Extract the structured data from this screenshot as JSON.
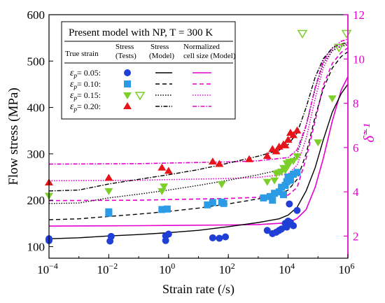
{
  "chart_data": {
    "type": "scatter",
    "title": "Present model with NP, T = 300 K",
    "xlabel": "Strain rate (/s)",
    "ylabel": "Flow stress (MPa)",
    "y2label": "δ̃⁻¹",
    "x_scale": "log",
    "xlim": [
      0.0001,
      1000000
    ],
    "ylim": [
      75,
      600
    ],
    "y2lim": [
      1,
      12
    ],
    "x_ticks": [
      {
        "value": 0.0001,
        "base": "10",
        "exp": "−4"
      },
      {
        "value": 0.01,
        "base": "10",
        "exp": "−2"
      },
      {
        "value": 1,
        "base": "10",
        "exp": "0"
      },
      {
        "value": 100,
        "base": "10",
        "exp": "2"
      },
      {
        "value": 10000,
        "base": "10",
        "exp": "4"
      },
      {
        "value": 1000000,
        "base": "10",
        "exp": "6"
      }
    ],
    "y_ticks": [
      100,
      200,
      300,
      400,
      500,
      600
    ],
    "y2_ticks": [
      2,
      4,
      6,
      8,
      10,
      12
    ],
    "colors": {
      "axis_right": "#e600d0",
      "model_size": "#e600d0",
      "s005": "#1f3fd6",
      "s010": "#2b9be6",
      "s015": "#7ccf2a",
      "s020": "#e8141b"
    },
    "legend": {
      "header": {
        "col1": "True strain",
        "col2": [
          "Stress",
          "(Tests)"
        ],
        "col3": [
          "Stress",
          "(Model)"
        ],
        "col4": [
          "Normalized",
          "cell size (Model)"
        ]
      },
      "rows": [
        {
          "label": "= 0.05:",
          "marker": "circle",
          "color": "#1f3fd6",
          "dash": ""
        },
        {
          "label": "= 0.10:",
          "marker": "square",
          "color": "#2b9be6",
          "dash": "6,4"
        },
        {
          "label": "= 0.15:",
          "marker": "triangle-down",
          "color": "#7ccf2a",
          "dash": "1.5,2"
        },
        {
          "label": "= 0.20:",
          "marker": "triangle-up",
          "color": "#e8141b",
          "dash": "6,2,1.5,2"
        }
      ]
    },
    "series": [
      {
        "name": "ε_p = 0.05",
        "marker": "circle",
        "color": "#1f3fd6",
        "dash": "",
        "tests": [
          [
            0.0001,
            113
          ],
          [
            0.0001,
            117
          ],
          [
            0.011,
            112
          ],
          [
            0.012,
            122
          ],
          [
            0.8,
            123
          ],
          [
            0.8,
            113
          ],
          [
            1.0,
            127
          ],
          [
            30,
            119
          ],
          [
            50,
            118
          ],
          [
            80,
            121
          ],
          [
            2000,
            135
          ],
          [
            3000,
            128
          ],
          [
            4000,
            131
          ],
          [
            5000,
            135
          ],
          [
            6000,
            138
          ],
          [
            8000,
            150
          ],
          [
            9000,
            142
          ],
          [
            10000,
            155
          ],
          [
            12000,
            152
          ],
          [
            15000,
            145
          ],
          [
            11000,
            192
          ],
          [
            20000,
            178
          ]
        ],
        "stress_model": [
          [
            0.0001,
            117
          ],
          [
            0.001,
            119
          ],
          [
            0.01,
            123
          ],
          [
            0.1,
            126
          ],
          [
            1,
            130
          ],
          [
            10,
            135
          ],
          [
            100,
            143
          ],
          [
            1000,
            152
          ],
          [
            5000,
            160
          ],
          [
            10000,
            168
          ],
          [
            20000,
            185
          ],
          [
            40000,
            220
          ],
          [
            80000,
            270
          ],
          [
            150000,
            330
          ],
          [
            300000,
            390
          ],
          [
            600000,
            430
          ],
          [
            1000000,
            450
          ]
        ],
        "cell_size_model": [
          [
            0.0001,
            2.45
          ],
          [
            0.1,
            2.47
          ],
          [
            1,
            2.48
          ],
          [
            100,
            2.5
          ],
          [
            1000,
            2.52
          ],
          [
            10000,
            2.6
          ],
          [
            20000,
            2.8
          ],
          [
            40000,
            3.2
          ],
          [
            80000,
            4.2
          ],
          [
            150000,
            5.5
          ],
          [
            300000,
            7.2
          ],
          [
            600000,
            8.6
          ],
          [
            1000000,
            9.2
          ]
        ]
      },
      {
        "name": "ε_p = 0.10",
        "marker": "square",
        "color": "#2b9be6",
        "dash": "6,4",
        "tests": [
          [
            0.01,
            175
          ],
          [
            0.01,
            172
          ],
          [
            0.6,
            180
          ],
          [
            0.9,
            181
          ],
          [
            20,
            190
          ],
          [
            30,
            195
          ],
          [
            60,
            196
          ],
          [
            70,
            193
          ],
          [
            1500,
            205
          ],
          [
            2500,
            208
          ],
          [
            3000,
            200
          ],
          [
            3500,
            215
          ],
          [
            5000,
            218
          ],
          [
            6000,
            228
          ],
          [
            7000,
            212
          ],
          [
            8000,
            232
          ],
          [
            9000,
            240
          ],
          [
            10000,
            250
          ],
          [
            12000,
            243
          ],
          [
            15000,
            256
          ],
          [
            20000,
            260
          ]
        ],
        "stress_model": [
          [
            0.0001,
            158
          ],
          [
            0.001,
            160
          ],
          [
            0.01,
            165
          ],
          [
            0.1,
            170
          ],
          [
            1,
            176
          ],
          [
            10,
            183
          ],
          [
            100,
            192
          ],
          [
            1000,
            203
          ],
          [
            5000,
            213
          ],
          [
            10000,
            222
          ],
          [
            20000,
            245
          ],
          [
            40000,
            300
          ],
          [
            80000,
            380
          ],
          [
            150000,
            440
          ],
          [
            300000,
            485
          ],
          [
            600000,
            510
          ],
          [
            1000000,
            520
          ]
        ],
        "cell_size_model": [
          [
            0.0001,
            3.6
          ],
          [
            0.1,
            3.62
          ],
          [
            1,
            3.65
          ],
          [
            100,
            3.7
          ],
          [
            1000,
            3.75
          ],
          [
            10000,
            3.85
          ],
          [
            20000,
            4.2
          ],
          [
            40000,
            5.5
          ],
          [
            80000,
            7.2
          ],
          [
            150000,
            8.8
          ],
          [
            300000,
            9.8
          ],
          [
            600000,
            10.3
          ],
          [
            1000000,
            10.5
          ]
        ]
      },
      {
        "name": "ε_p = 0.15",
        "marker": "triangle-down",
        "color": "#7ccf2a",
        "dash": "1.5,2",
        "tests": [
          [
            0.0001,
            210
          ],
          [
            0.01,
            220
          ],
          [
            0.6,
            220
          ],
          [
            0.7,
            230
          ],
          [
            60,
            235
          ],
          [
            2000,
            240
          ],
          [
            3500,
            243
          ],
          [
            4000,
            258
          ],
          [
            5000,
            260
          ],
          [
            6000,
            262
          ],
          [
            7000,
            270
          ],
          [
            8000,
            265
          ],
          [
            9000,
            280
          ],
          [
            10000,
            275
          ],
          [
            11000,
            283
          ],
          [
            15000,
            285
          ],
          [
            20000,
            295
          ],
          [
            100000,
            325
          ],
          [
            300000,
            420
          ],
          [
            500000,
            530
          ],
          [
            30000,
            560
          ],
          [
            900000,
            560
          ]
        ],
        "stress_model": [
          [
            0.0001,
            193
          ],
          [
            0.001,
            194
          ],
          [
            0.01,
            205
          ],
          [
            0.1,
            213
          ],
          [
            1,
            222
          ],
          [
            10,
            232
          ],
          [
            100,
            243
          ],
          [
            1000,
            255
          ],
          [
            5000,
            265
          ],
          [
            10000,
            275
          ],
          [
            20000,
            300
          ],
          [
            40000,
            360
          ],
          [
            80000,
            440
          ],
          [
            150000,
            495
          ],
          [
            300000,
            522
          ],
          [
            600000,
            532
          ],
          [
            1000000,
            535
          ]
        ],
        "cell_size_model": [
          [
            0.0001,
            4.5
          ],
          [
            0.1,
            4.52
          ],
          [
            1,
            4.55
          ],
          [
            100,
            4.6
          ],
          [
            1000,
            4.65
          ],
          [
            10000,
            4.8
          ],
          [
            20000,
            5.2
          ],
          [
            40000,
            6.4
          ],
          [
            80000,
            8.2
          ],
          [
            150000,
            9.6
          ],
          [
            300000,
            10.4
          ],
          [
            600000,
            10.6
          ],
          [
            1000000,
            10.7
          ]
        ]
      },
      {
        "name": "ε_p = 0.20",
        "marker": "triangle-up",
        "color": "#e8141b",
        "dash": "6,2,1.5,2",
        "tests": [
          [
            0.0001,
            238
          ],
          [
            0.01,
            248
          ],
          [
            0.6,
            270
          ],
          [
            1,
            263
          ],
          [
            30,
            283
          ],
          [
            50,
            278
          ],
          [
            500,
            288
          ],
          [
            2000,
            295
          ],
          [
            3000,
            310
          ],
          [
            4000,
            305
          ],
          [
            5000,
            315
          ],
          [
            7000,
            320
          ],
          [
            8000,
            318
          ],
          [
            10000,
            330
          ],
          [
            12000,
            345
          ],
          [
            15000,
            340
          ],
          [
            20000,
            350
          ]
        ],
        "stress_model": [
          [
            0.0001,
            220
          ],
          [
            0.001,
            222
          ],
          [
            0.01,
            235
          ],
          [
            0.1,
            245
          ],
          [
            1,
            255
          ],
          [
            10,
            266
          ],
          [
            100,
            280
          ],
          [
            1000,
            295
          ],
          [
            5000,
            308
          ],
          [
            10000,
            320
          ],
          [
            20000,
            345
          ],
          [
            40000,
            400
          ],
          [
            80000,
            465
          ],
          [
            150000,
            505
          ],
          [
            300000,
            528
          ],
          [
            600000,
            537
          ],
          [
            1000000,
            540
          ]
        ],
        "cell_size_model": [
          [
            0.0001,
            5.25
          ],
          [
            0.1,
            5.27
          ],
          [
            1,
            5.3
          ],
          [
            100,
            5.35
          ],
          [
            1000,
            5.4
          ],
          [
            10000,
            5.55
          ],
          [
            20000,
            5.9
          ],
          [
            40000,
            7.0
          ],
          [
            80000,
            8.7
          ],
          [
            150000,
            9.9
          ],
          [
            300000,
            10.5
          ],
          [
            600000,
            10.8
          ],
          [
            1000000,
            10.9
          ]
        ]
      }
    ]
  }
}
